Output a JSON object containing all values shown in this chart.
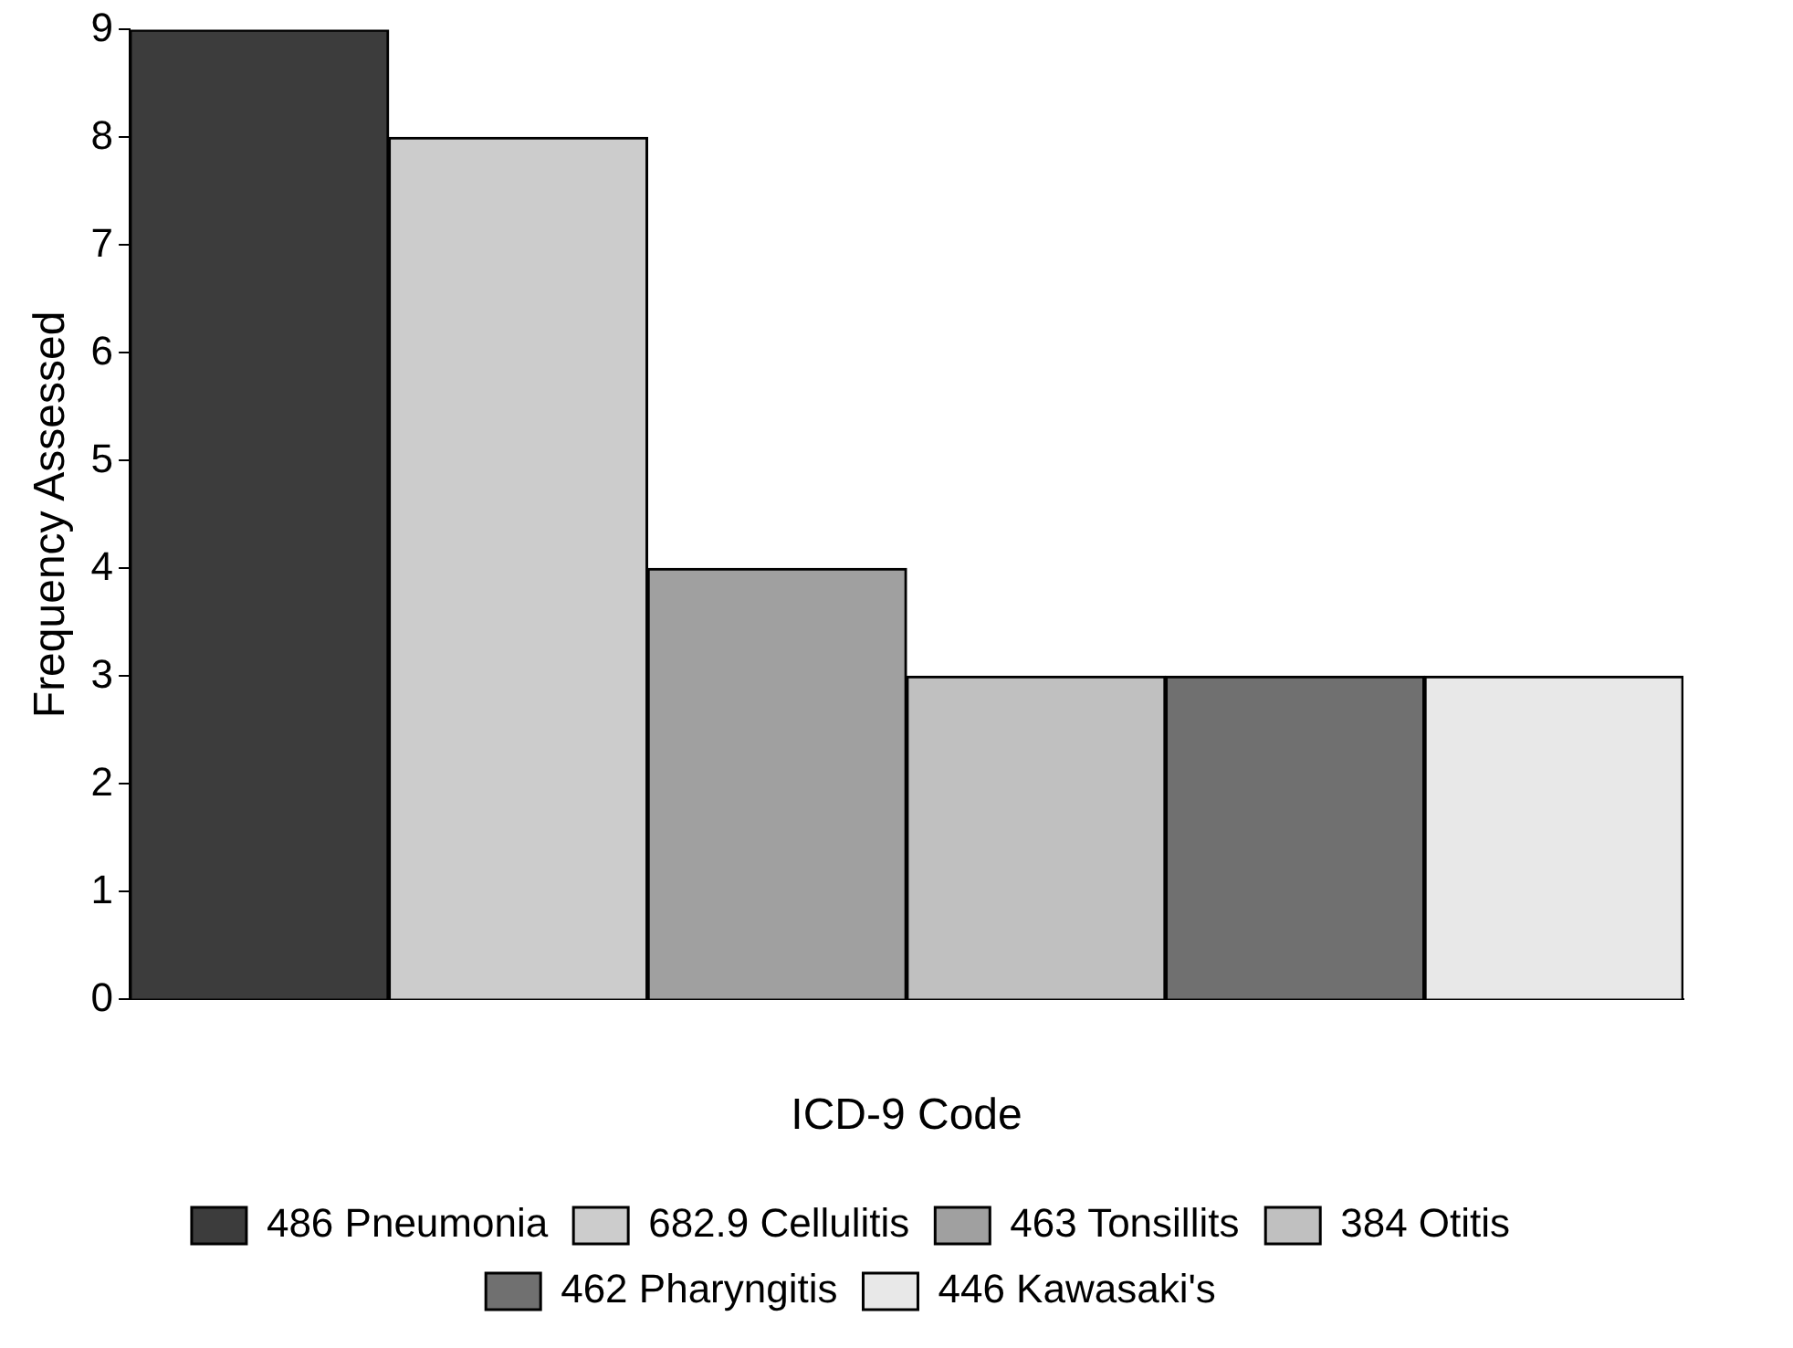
{
  "chart_data": {
    "type": "bar",
    "xlabel": "ICD-9 Code",
    "ylabel": "Frequency Assessed",
    "categories": [
      null,
      null,
      null,
      null,
      null,
      null
    ],
    "series": [
      {
        "name": "486 Pneumonia",
        "color": "#3c3c3c",
        "values": [
          9,
          null,
          null,
          null,
          null,
          null
        ]
      },
      {
        "name": "682.9 Cellulitis",
        "color": "#cccccc",
        "values": [
          null,
          8,
          null,
          null,
          null,
          null
        ]
      },
      {
        "name": "463 Tonsillits",
        "color": "#a0a0a0",
        "values": [
          null,
          null,
          4,
          null,
          null,
          null
        ]
      },
      {
        "name": "384 Otitis",
        "color": "#c0c0c0",
        "values": [
          null,
          null,
          null,
          3,
          null,
          null
        ]
      },
      {
        "name": "462 Pharyngitis",
        "color": "#707070",
        "values": [
          null,
          null,
          null,
          null,
          3,
          null
        ]
      },
      {
        "name": "446 Kawasaki's",
        "color": "#e8e8e8",
        "values": [
          null,
          null,
          null,
          null,
          null,
          3
        ]
      }
    ],
    "ylim": [
      0,
      9
    ],
    "yticks": [
      0,
      1,
      2,
      3,
      4,
      5,
      6,
      7,
      8,
      9
    ],
    "grid": false,
    "legend": "bottom",
    "tick_labels": "y"
  }
}
